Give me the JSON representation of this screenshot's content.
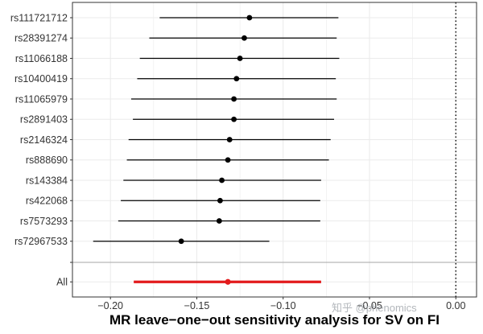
{
  "chart_data": {
    "type": "forest",
    "xlabel": "MR leave−one−out sensitivity analysis for SV on FI",
    "xlim": [
      -0.222,
      0.012
    ],
    "x_ticks": [
      -0.2,
      -0.15,
      -0.1,
      -0.05,
      0.0
    ],
    "x_tick_labels": [
      "−0.20",
      "−0.15",
      "−0.10",
      "−0.05",
      "0.00"
    ],
    "reference_line": 0.0,
    "grid": true,
    "snps": [
      {
        "label": "rs111721712",
        "estimate": -0.1195,
        "lower": -0.1715,
        "upper": -0.068
      },
      {
        "label": "rs28391274",
        "estimate": -0.1225,
        "lower": -0.1775,
        "upper": -0.069
      },
      {
        "label": "rs11066188",
        "estimate": -0.125,
        "lower": -0.183,
        "upper": -0.0675
      },
      {
        "label": "rs10400419",
        "estimate": -0.127,
        "lower": -0.1845,
        "upper": -0.0695
      },
      {
        "label": "rs11065979",
        "estimate": -0.1285,
        "lower": -0.188,
        "upper": -0.069
      },
      {
        "label": "rs2891403",
        "estimate": -0.1285,
        "lower": -0.187,
        "upper": -0.0705
      },
      {
        "label": "rs2146324",
        "estimate": -0.131,
        "lower": -0.1895,
        "upper": -0.0725
      },
      {
        "label": "rs888690",
        "estimate": -0.132,
        "lower": -0.1905,
        "upper": -0.0735
      },
      {
        "label": "rs143384",
        "estimate": -0.1355,
        "lower": -0.1925,
        "upper": -0.078
      },
      {
        "label": "rs422068",
        "estimate": -0.1365,
        "lower": -0.194,
        "upper": -0.0785
      },
      {
        "label": "rs7573293",
        "estimate": -0.137,
        "lower": -0.1955,
        "upper": -0.0785
      },
      {
        "label": "rs72967533",
        "estimate": -0.159,
        "lower": -0.21,
        "upper": -0.108
      }
    ],
    "overall": {
      "label": "All",
      "estimate": -0.132,
      "lower": -0.1865,
      "upper": -0.078
    },
    "colors": {
      "snp": "#000000",
      "overall": "#e31a1c",
      "grid": "#ebebeb",
      "border": "#333333",
      "separator": "#a6a6a6"
    }
  },
  "watermark": "知乎 @phenomics"
}
